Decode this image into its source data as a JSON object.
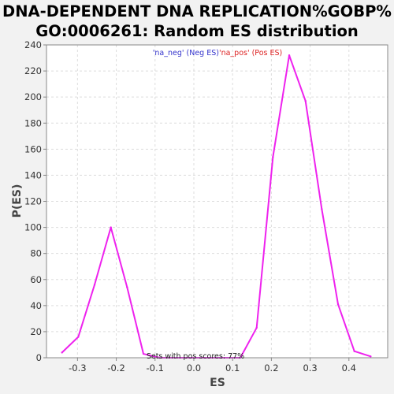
{
  "chart_data": {
    "type": "line",
    "title_lines": [
      "DNA-DEPENDENT DNA REPLICATION%GOBP%",
      "GO:0006261: Random ES distribution"
    ],
    "xlabel": "ES",
    "ylabel": "P(ES)",
    "xlim": [
      -0.38,
      0.5
    ],
    "ylim": [
      0,
      240
    ],
    "xticks": [
      -0.3,
      -0.2,
      -0.1,
      0.0,
      0.1,
      0.2,
      0.3,
      0.4
    ],
    "xtick_labels": [
      "-0.3",
      "-0.2",
      "-0.1",
      "0.0",
      "0.1",
      "0.2",
      "0.3",
      "0.4"
    ],
    "yticks": [
      0,
      20,
      40,
      60,
      80,
      100,
      120,
      140,
      160,
      180,
      200,
      220,
      240
    ],
    "ytick_labels": [
      "0",
      "20",
      "40",
      "60",
      "80",
      "100",
      "120",
      "140",
      "160",
      "180",
      "200",
      "220",
      "240"
    ],
    "grid": true,
    "legend": {
      "placement": "top-center",
      "entries": [
        {
          "label": "'na_neg' (Neg ES)",
          "color": "#3333cc"
        },
        {
          "label": "'na_pos' (Pos ES)",
          "color": "#dd2222"
        }
      ]
    },
    "annotation": "Sets with pos scores: 77%",
    "series": [
      {
        "color": "#ee22ee",
        "x": [
          -0.34,
          -0.298,
          -0.256,
          -0.214,
          -0.172,
          -0.13,
          -0.088,
          0.12,
          0.162,
          0.204,
          0.246,
          0.288,
          0.33,
          0.372,
          0.414,
          0.456
        ],
        "y": [
          4,
          16,
          56,
          100,
          54,
          3,
          0,
          0,
          23,
          154,
          232,
          197,
          114,
          41,
          5,
          1
        ]
      }
    ]
  }
}
